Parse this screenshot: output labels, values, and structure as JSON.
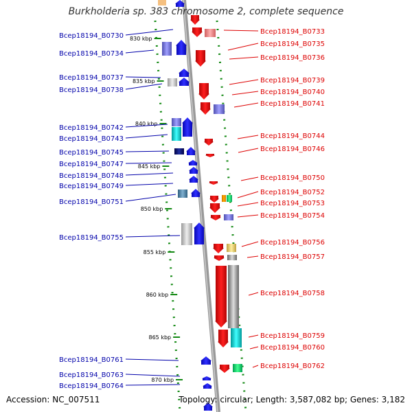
{
  "title": "Burkholderia sp. 383 chromosome 2, complete sequence",
  "accession": "Accession: NC_007511",
  "topology": "Topology: circular; Length: 3,587,082 bp; Genes: 3,182",
  "ticks": [
    "830 kbp",
    "835 kbp",
    "840 kbp",
    "845 kbp",
    "850 kbp",
    "855 kbp",
    "860 kbp",
    "865 kbp",
    "870 kbp"
  ],
  "colors": {
    "forward": "#1010dd",
    "reverse": "#ee1111",
    "backbone": "#888888",
    "gridline": "#118811"
  },
  "left_genes": [
    "Bcep18194_B0730",
    "Bcep18194_B0734",
    "Bcep18194_B0737",
    "Bcep18194_B0738",
    "Bcep18194_B0742",
    "Bcep18194_B0743",
    "Bcep18194_B0745",
    "Bcep18194_B0747",
    "Bcep18194_B0748",
    "Bcep18194_B0749",
    "Bcep18194_B0751",
    "Bcep18194_B0755",
    "Bcep18194_B0761",
    "Bcep18194_B0763",
    "Bcep18194_B0764"
  ],
  "right_genes": [
    "Bcep18194_B0733",
    "Bcep18194_B0735",
    "Bcep18194_B0736",
    "Bcep18194_B0739",
    "Bcep18194_B0740",
    "Bcep18194_B0741",
    "Bcep18194_B0744",
    "Bcep18194_B0746",
    "Bcep18194_B0750",
    "Bcep18194_B0752",
    "Bcep18194_B0753",
    "Bcep18194_B0754",
    "Bcep18194_B0756",
    "Bcep18194_B0757",
    "Bcep18194_B0758",
    "Bcep18194_B0759",
    "Bcep18194_B0760",
    "Bcep18194_B0762"
  ]
}
